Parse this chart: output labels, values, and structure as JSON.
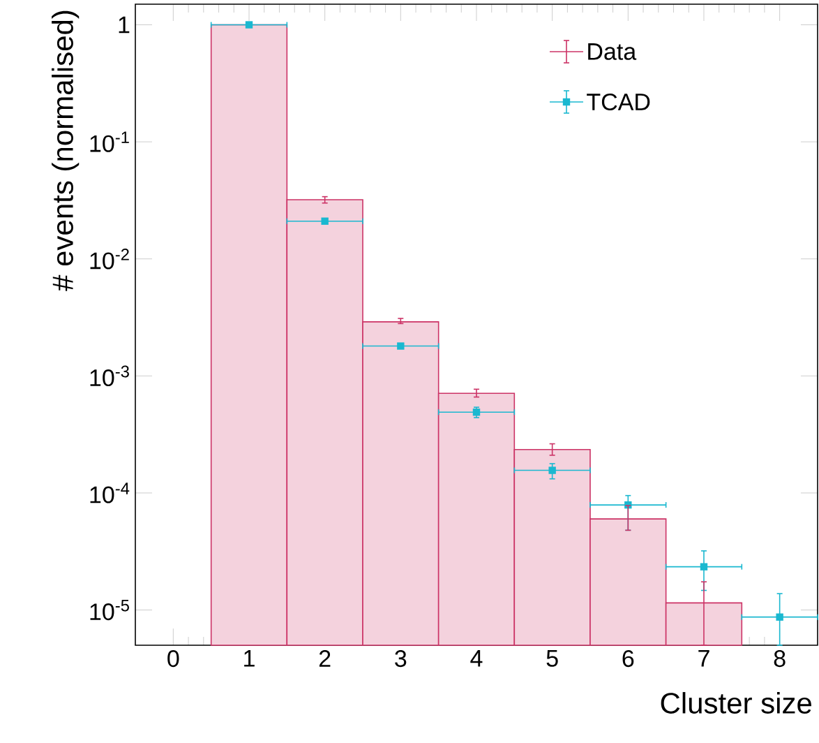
{
  "chart_data": {
    "type": "histogram",
    "xlabel": "Cluster size",
    "ylabel": "# events (normalised)",
    "xlim": [
      -0.5,
      8.5
    ],
    "xticks": [
      0,
      1,
      2,
      3,
      4,
      5,
      6,
      7,
      8
    ],
    "ylim": [
      5e-06,
      1.5
    ],
    "yticks": [
      {
        "value": 1,
        "label": "1"
      },
      {
        "value": 0.1,
        "label": "10$^{-1}$"
      },
      {
        "value": 0.01,
        "label": "10$^{-2}$"
      },
      {
        "value": 0.001,
        "label": "10$^{-3}$"
      },
      {
        "value": 0.0001,
        "label": "10$^{-4}$"
      },
      {
        "value": 1e-05,
        "label": "10$^{-5}$"
      }
    ],
    "log": "y",
    "legend": "top right",
    "series": [
      {
        "name": "Data",
        "color": "#cc3366",
        "bins": [
          0.5,
          1.5,
          2.5,
          3.5,
          4.5,
          5.5,
          6.5,
          7.5
        ],
        "values": [
          1.0,
          0.032,
          0.0029,
          0.00071,
          0.000235,
          6e-05,
          1.15e-05
        ],
        "errors": [
          null,
          [
            0.03,
            0.034
          ],
          [
            0.0028,
            0.0031
          ],
          [
            0.00066,
            0.00077
          ],
          [
            0.00021,
            0.000263
          ],
          [
            4.8e-05,
            7.8e-05
          ],
          [
            5e-06,
            1.74e-05
          ]
        ]
      },
      {
        "name": "TCAD",
        "type": "scatter",
        "marker": "square",
        "color": "#1ab8d0",
        "x": [
          1,
          2,
          3,
          4,
          5,
          6,
          7,
          8
        ],
        "values": [
          1.0,
          0.021,
          0.0018,
          0.00049,
          0.000156,
          7.9e-05,
          2.34e-05,
          8.7e-06
        ],
        "xerrors": [
          0.5,
          0.5,
          0.5,
          0.5,
          0.5,
          0.5,
          0.5,
          0.5
        ],
        "errors": [
          null,
          null,
          null,
          [
            0.00044,
            0.00054
          ],
          [
            0.000132,
            0.000178
          ],
          [
            4.8e-05,
            9.5e-05
          ],
          [
            1.47e-05,
            3.2e-05
          ],
          [
            5e-06,
            1.38e-05
          ]
        ]
      }
    ]
  }
}
